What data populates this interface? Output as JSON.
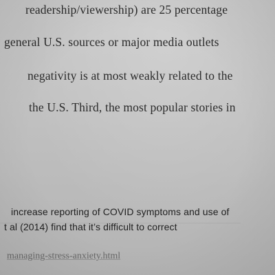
{
  "document": {
    "body_lines": [
      "readership/viewership) are 25 percentage",
      "general U.S. sources or major media outlets",
      "negativity is at most weakly related to the",
      "the U.S.  Third, the most popular stories in"
    ],
    "footnote_lines": [
      "increase reporting of COVID symptoms and use of",
      "t al (2014) find that it’s difficult to correct"
    ],
    "url_fragment": "managing-stress-anxiety.html"
  }
}
